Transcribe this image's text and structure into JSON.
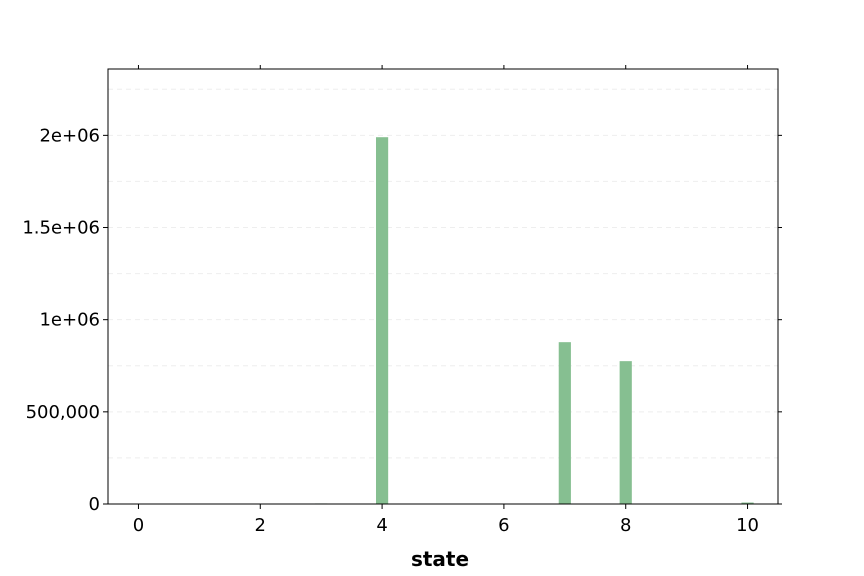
{
  "chart_data": {
    "type": "bar",
    "title": "",
    "xlabel": "state",
    "ylabel": "",
    "x": [
      3,
      4,
      7,
      8,
      10
    ],
    "values": [
      3000,
      1990000,
      878000,
      775000,
      8000
    ],
    "xlim": [
      -0.5,
      10.5
    ],
    "ylim": [
      0,
      2360000
    ],
    "xticks": [
      0,
      2,
      4,
      6,
      8,
      10
    ],
    "xtick_labels": [
      "0",
      "2",
      "4",
      "6",
      "8",
      "10"
    ],
    "yticks": [
      0,
      500000,
      1000000,
      1500000,
      2000000
    ],
    "ytick_labels": [
      "0",
      "500,000",
      "1e+06",
      "1.5e+06",
      "2e+06"
    ],
    "bar_color": "#86bf91",
    "grid": "horizontal dashed",
    "legend": "none"
  }
}
